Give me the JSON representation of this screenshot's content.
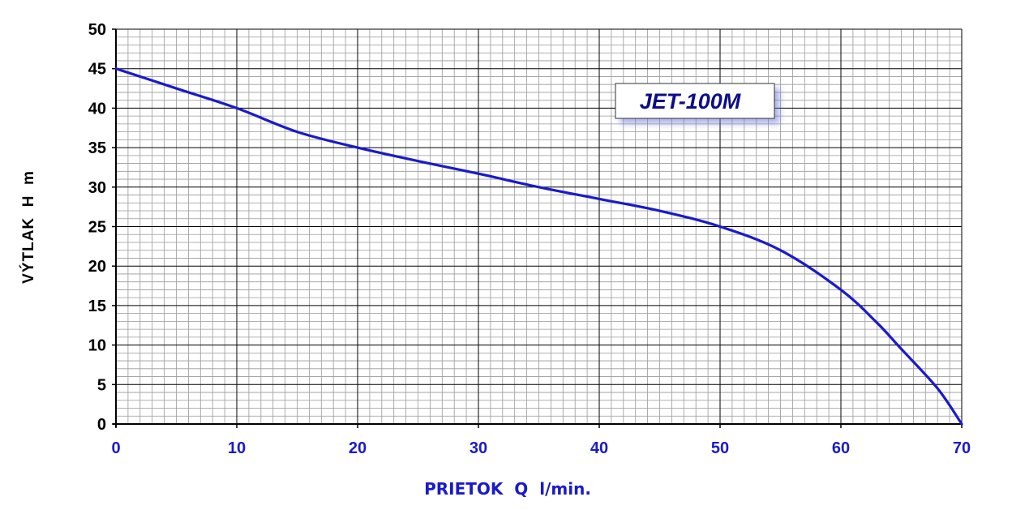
{
  "chart_data": {
    "type": "line",
    "title": "",
    "xlabel": "PRIETOK  Q  l/min.",
    "ylabel": "VÝTLAK  H  m",
    "xlim": [
      0,
      70
    ],
    "ylim": [
      0,
      50
    ],
    "x_ticks": [
      "0",
      "10",
      "20",
      "30",
      "40",
      "50",
      "60",
      "70"
    ],
    "y_ticks": [
      "0",
      "5",
      "10",
      "15",
      "20",
      "25",
      "30",
      "35",
      "40",
      "45",
      "50"
    ],
    "grid": true,
    "legend_position": "top-right",
    "series": [
      {
        "name": "JET-100M",
        "color": "#1a1acc",
        "x": [
          0,
          5,
          10,
          15,
          20,
          25,
          30,
          35,
          40,
          45,
          50,
          55,
          60,
          63,
          65,
          68,
          70
        ],
        "y": [
          45,
          42.5,
          40,
          37,
          35,
          33.3,
          31.7,
          30,
          28.5,
          27,
          25,
          22,
          17,
          12.8,
          9.5,
          4.5,
          0
        ]
      }
    ],
    "colors": {
      "axis_tick_x": "#1a1acc",
      "axis_tick_y": "#000000",
      "grid_major": "#000000",
      "grid_minor": "#999999"
    }
  }
}
